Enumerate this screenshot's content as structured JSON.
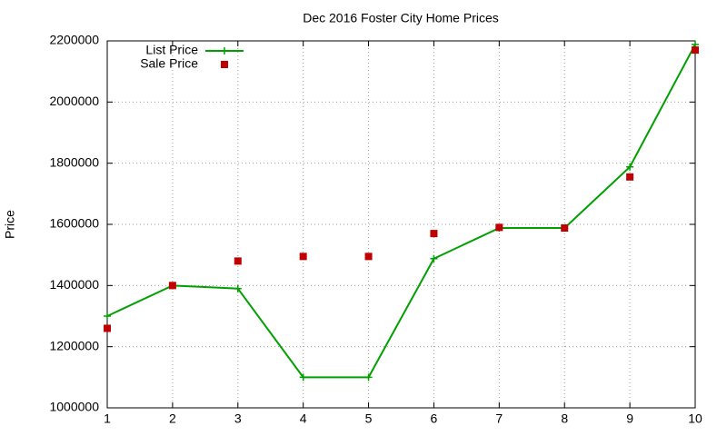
{
  "chart_data": {
    "type": "line",
    "title": "Dec 2016 Foster City Home Prices",
    "y_label": "Price",
    "x": [
      1,
      2,
      3,
      4,
      5,
      6,
      7,
      8,
      9,
      10
    ],
    "series": [
      {
        "name": "List Price",
        "color": "#00a000",
        "style": "linespoints",
        "values": [
          1300000,
          1400000,
          1390000,
          1100000,
          1100000,
          1488000,
          1588000,
          1588000,
          1788000,
          2188000
        ]
      },
      {
        "name": "Sale Price",
        "color": "#c00000",
        "style": "points",
        "values": [
          1260000,
          1400000,
          1480000,
          1495000,
          1495000,
          1570000,
          1590000,
          1588000,
          1755000,
          2170000
        ]
      }
    ],
    "xlim": [
      1,
      10
    ],
    "xticks": [
      1,
      2,
      3,
      4,
      5,
      6,
      7,
      8,
      9,
      10
    ],
    "ylim": [
      1000000,
      2200000
    ],
    "yticks": [
      1000000,
      1200000,
      1400000,
      1600000,
      1800000,
      2000000,
      2200000
    ],
    "grid": true,
    "legend": "top-left"
  }
}
